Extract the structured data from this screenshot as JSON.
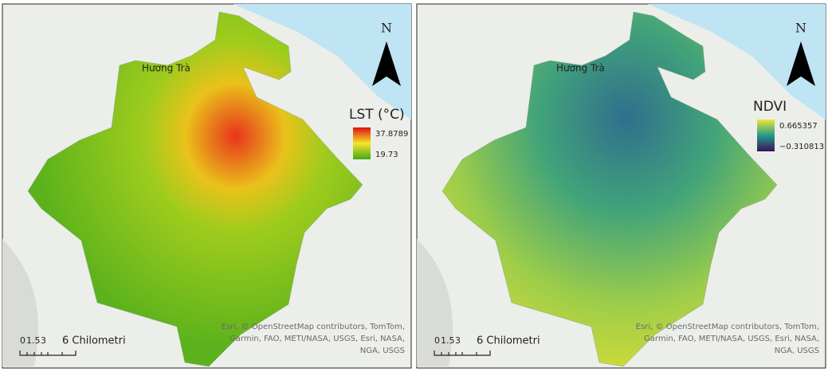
{
  "panels": [
    {
      "place_label": "Hương Trà",
      "north": "N",
      "legend": {
        "title": "LST (°C)",
        "max": "37.8789",
        "min": "19.73"
      },
      "scale": {
        "ticks": [
          "0",
          "1.5",
          "3"
        ],
        "unit": "6 Chilometri"
      },
      "attribution": [
        "Esri, © OpenStreetMap contributors, TomTom,",
        "Garmin, FAO, METI/NASA, USGS, Esri, NASA,",
        "NGA, USGS"
      ]
    },
    {
      "place_label": "Hương Trà",
      "north": "N",
      "legend": {
        "title": "NDVI",
        "max": "0.665357",
        "min": "−0.310813"
      },
      "scale": {
        "ticks": [
          "0",
          "1.5",
          "3"
        ],
        "unit": "6 Chilometri"
      },
      "attribution": [
        "Esri, © OpenStreetMap contributors, TomTom,",
        "Garmin, FAO, METI/NASA, USGS, Esri, NASA,",
        "NGA, USGS"
      ]
    }
  ]
}
